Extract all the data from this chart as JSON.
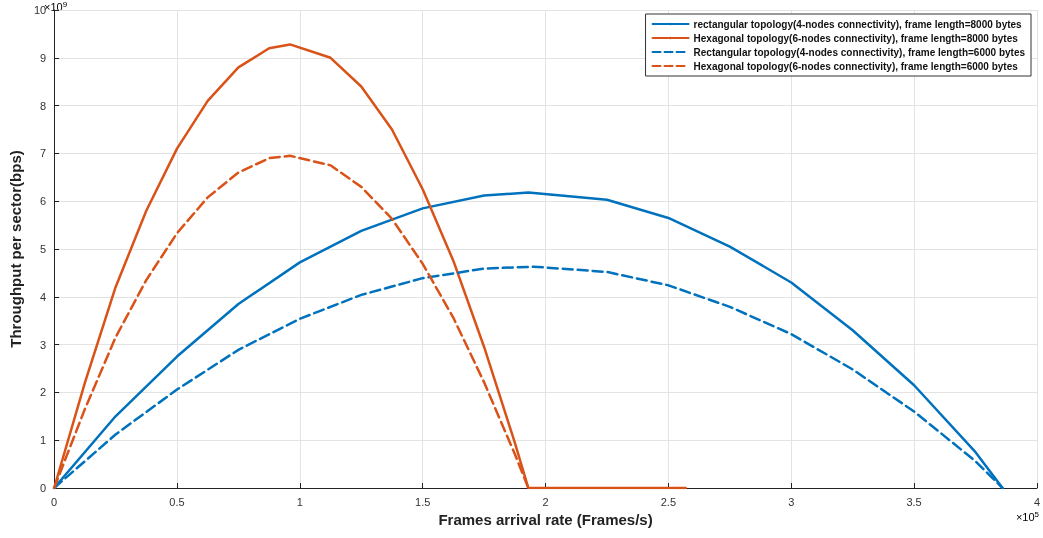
{
  "chart_data": {
    "type": "line",
    "xlabel": "Frames arrival rate (Frames/s)",
    "ylabel": "Throughput per sector(bps)",
    "annotations": [
      "×10$^{9}$",
      "×10$^{5}$"
    ],
    "xlim": [
      0,
      4
    ],
    "xticks": [
      0,
      0.5,
      1,
      1.5,
      2,
      2.5,
      3,
      3.5,
      4
    ],
    "ylim": [
      0,
      10
    ],
    "yticks": [
      0,
      1,
      2,
      3,
      4,
      5,
      6,
      7,
      8,
      9,
      10
    ],
    "grid": true,
    "legend": "top right",
    "marker": "none",
    "series": [
      {
        "name": "rectangular topology(4-nodes connectivity), frame length=8000 bytes",
        "color": "#0072bd",
        "line_style": "solid",
        "x": [
          0,
          0.25,
          0.5,
          0.75,
          1,
          1.25,
          1.5,
          1.75,
          1.93,
          2.25,
          2.5,
          2.75,
          3,
          3.25,
          3.5,
          3.75,
          3.86
        ],
        "values": [
          0,
          1.5,
          2.75,
          3.85,
          4.72,
          5.38,
          5.85,
          6.12,
          6.18,
          6.03,
          5.65,
          5.05,
          4.3,
          3.3,
          2.15,
          0.75,
          0
        ]
      },
      {
        "name": "Hexagonal topology(6-nodes connectivity), frame length=8000 bytes",
        "color": "#d95319",
        "line_style": "solid",
        "x": [
          0,
          0.125,
          0.25,
          0.375,
          0.5,
          0.625,
          0.75,
          0.875,
          0.96,
          1.125,
          1.25,
          1.375,
          1.5,
          1.625,
          1.75,
          1.875,
          1.93,
          2.57
        ],
        "values": [
          0,
          2.2,
          4.2,
          5.8,
          7.1,
          8.1,
          8.8,
          9.2,
          9.28,
          9.0,
          8.4,
          7.5,
          6.25,
          4.75,
          2.95,
          0.95,
          0,
          0
        ]
      },
      {
        "name": "Rectangular topology(4-nodes connectivity), frame length=6000 bytes",
        "color": "#0072bd",
        "line_style": "dashed",
        "x": [
          0,
          0.25,
          0.5,
          0.75,
          1,
          1.25,
          1.5,
          1.75,
          1.95,
          2.25,
          2.5,
          2.75,
          3,
          3.25,
          3.5,
          3.75,
          3.86
        ],
        "values": [
          0,
          1.12,
          2.06,
          2.89,
          3.54,
          4.04,
          4.39,
          4.59,
          4.63,
          4.52,
          4.24,
          3.79,
          3.22,
          2.48,
          1.6,
          0.56,
          0
        ]
      },
      {
        "name": "Hexagonal topology(6-nodes connectivity), frame length=6000 bytes",
        "color": "#d95319",
        "line_style": "dashed",
        "x": [
          0,
          0.125,
          0.25,
          0.375,
          0.5,
          0.625,
          0.75,
          0.875,
          0.96,
          1.125,
          1.25,
          1.375,
          1.5,
          1.625,
          1.75,
          1.875,
          1.93
        ],
        "values": [
          0,
          1.65,
          3.15,
          4.35,
          5.33,
          6.08,
          6.6,
          6.9,
          6.95,
          6.75,
          6.3,
          5.63,
          4.69,
          3.56,
          2.21,
          0.71,
          0
        ]
      }
    ]
  }
}
